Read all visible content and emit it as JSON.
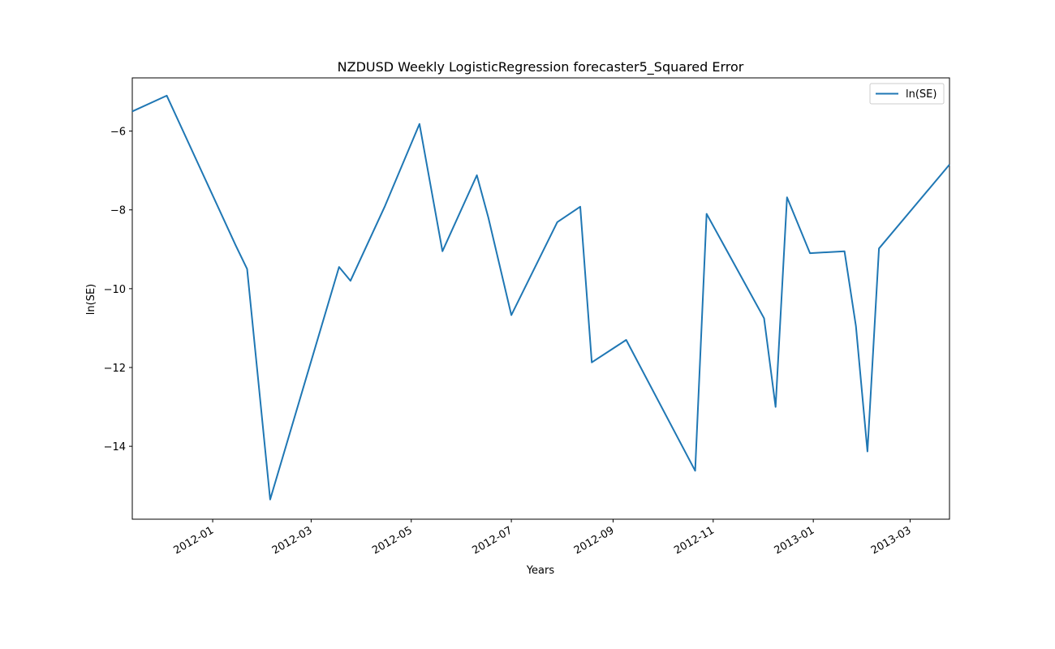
{
  "chart_data": {
    "type": "line",
    "title": "NZDUSD Weekly LogisticRegression forecaster5_Squared Error",
    "xlabel": "Years",
    "ylabel": "ln(SE)",
    "x_tick_labels": [
      "2012-01",
      "2012-03",
      "2012-05",
      "2012-07",
      "2012-09",
      "2012-11",
      "2013-01",
      "2013-03"
    ],
    "y_ticks": [
      -14,
      -12,
      -10,
      -8,
      -6
    ],
    "y_tick_labels": [
      "−14",
      "−12",
      "−10",
      "−8",
      "−6"
    ],
    "xlim": [
      "2011-11-13",
      "2013-03-25"
    ],
    "ylim": [
      -15.85,
      -4.65
    ],
    "grid": false,
    "legend_position": "top-right",
    "series": [
      {
        "name": "ln(SE)",
        "color": "#1f77b4",
        "x": [
          "2011-11-13",
          "2011-12-04",
          "2012-01-15",
          "2012-01-22",
          "2012-02-05",
          "2012-03-18",
          "2012-03-25",
          "2012-04-15",
          "2012-05-06",
          "2012-05-20",
          "2012-06-10",
          "2012-06-17",
          "2012-07-01",
          "2012-07-29",
          "2012-08-12",
          "2012-08-19",
          "2012-09-09",
          "2012-10-21",
          "2012-10-28",
          "2012-12-02",
          "2012-12-09",
          "2012-12-16",
          "2012-12-30",
          "2013-01-20",
          "2013-01-27",
          "2013-02-03",
          "2013-02-10",
          "2013-03-25"
        ],
        "y": [
          -5.5,
          -5.1,
          -8.9,
          -9.5,
          -15.35,
          -9.45,
          -9.8,
          -7.9,
          -5.82,
          -9.05,
          -7.12,
          -8.2,
          -10.67,
          -8.31,
          -7.92,
          -11.87,
          -11.3,
          -14.62,
          -8.1,
          -10.75,
          -13.0,
          -7.68,
          -9.1,
          -9.05,
          -10.95,
          -14.13,
          -8.98,
          -6.85
        ]
      }
    ]
  }
}
